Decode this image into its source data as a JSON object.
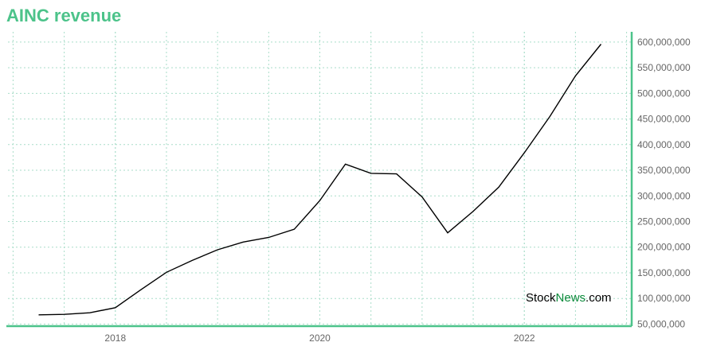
{
  "title": "AINC revenue",
  "watermark": {
    "part1": "Stock",
    "part2": "News",
    "part3": ".com"
  },
  "colors": {
    "title": "#4cc38a",
    "axis": "#4cc38a",
    "grid": "#a9ddc9",
    "line": "#000000",
    "watermark_accent": "#0a8a3a"
  },
  "chart_data": {
    "type": "line",
    "title": "AINC revenue",
    "xlabel": "",
    "ylabel": "",
    "x_ticks": [
      "2018",
      "2020",
      "2022"
    ],
    "y_ticks": [
      "50,000,000",
      "100,000,000",
      "150,000,000",
      "200,000,000",
      "250,000,000",
      "300,000,000",
      "350,000,000",
      "400,000,000",
      "450,000,000",
      "500,000,000",
      "550,000,000",
      "600,000,000"
    ],
    "xlim": [
      2016.95,
      2023.05
    ],
    "ylim": [
      46000000,
      620000000
    ],
    "grid": true,
    "series": [
      {
        "x": [
          2017.25,
          2017.5,
          2017.75,
          2018.0,
          2018.25,
          2018.5,
          2018.75,
          2019.0,
          2019.25,
          2019.5,
          2019.75,
          2020.0,
          2020.25,
          2020.5,
          2020.75,
          2021.0,
          2021.25,
          2021.5,
          2021.75,
          2022.0,
          2022.25,
          2022.5,
          2022.75
        ],
        "values": [
          68000000,
          69000000,
          72000000,
          82000000,
          117000000,
          151000000,
          174000000,
          195000000,
          210000000,
          219000000,
          235000000,
          291000000,
          362000000,
          344000000,
          343000000,
          298000000,
          228000000,
          270000000,
          317000000,
          384000000,
          455000000,
          534000000,
          596000000
        ]
      }
    ]
  }
}
